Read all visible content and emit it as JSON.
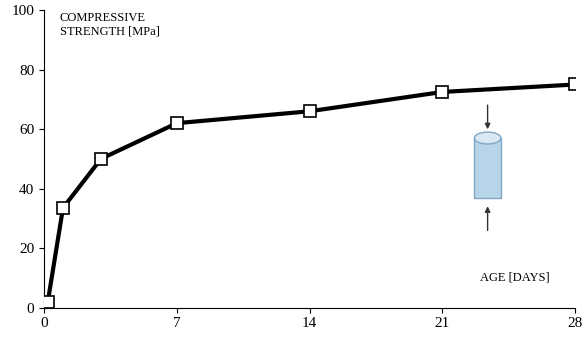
{
  "chart_data": {
    "type": "line",
    "y_label": "COMPRESSIVE\nSTRENGTH [MPa]",
    "x_label": "AGE [DAYS]",
    "x": [
      0.2,
      1,
      3,
      7,
      14,
      21,
      28
    ],
    "values": [
      2,
      33.5,
      50,
      62,
      66,
      72.5,
      75
    ],
    "color": "#000000",
    "marker": "square",
    "line_style": "solid",
    "xlim": [
      0,
      28
    ],
    "xticks": [
      0,
      7,
      14,
      21,
      28
    ],
    "ylim": [
      0,
      100
    ],
    "yticks": [
      0,
      20,
      40,
      60,
      80,
      100
    ],
    "grid": false
  }
}
